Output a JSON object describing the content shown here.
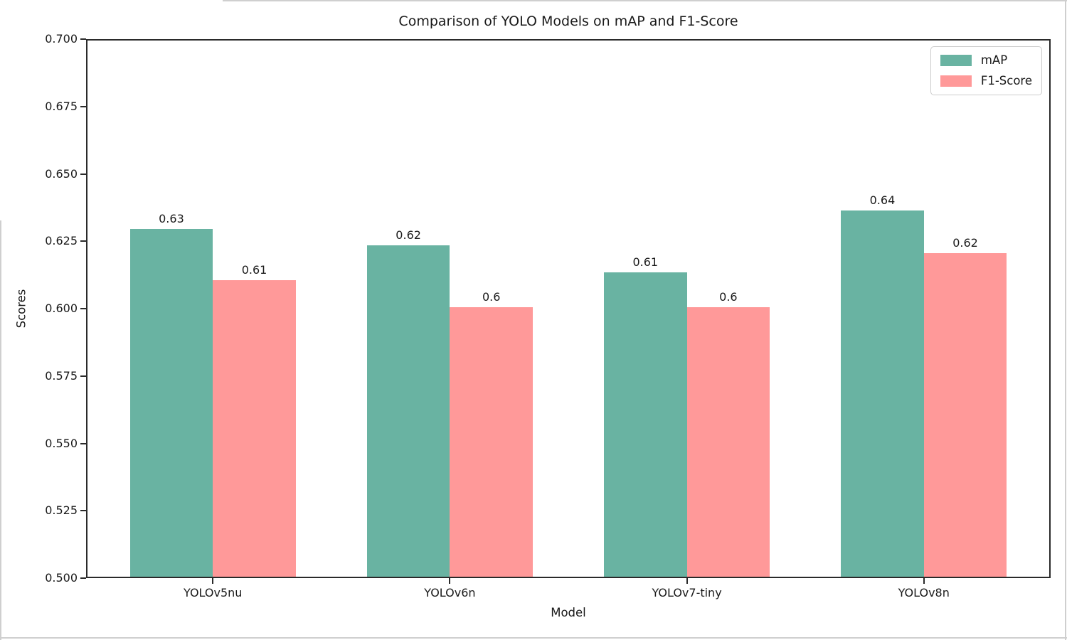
{
  "window": {
    "background": "#ffffff",
    "edge_line_color": "#cfcfcf"
  },
  "chart_data": {
    "type": "bar",
    "title": "Comparison of YOLO Models on mAP and F1-Score",
    "xlabel": "Model",
    "ylabel": "Scores",
    "categories": [
      "YOLOv5nu",
      "YOLOv6n",
      "YOLOv7-tiny",
      "YOLOv8n"
    ],
    "series": [
      {
        "name": "mAP",
        "color": "#69b3a2",
        "values": [
          0.629,
          0.623,
          0.613,
          0.636
        ],
        "value_labels": [
          "0.63",
          "0.62",
          "0.61",
          "0.64"
        ]
      },
      {
        "name": "F1-Score",
        "color": "#ff9999",
        "values": [
          0.61,
          0.6,
          0.6,
          0.62
        ],
        "value_labels": [
          "0.61",
          "0.6",
          "0.6",
          "0.62"
        ]
      }
    ],
    "ylim": [
      0.5,
      0.7
    ],
    "ytick_step": 0.025,
    "ytick_decimals": 3,
    "xlim": [
      -0.535,
      3.535
    ],
    "bar_width": 0.35,
    "grid": false,
    "legend_position": "upper right",
    "axis_color": "#2a2a2a",
    "text_color": "#1a1a1a"
  }
}
